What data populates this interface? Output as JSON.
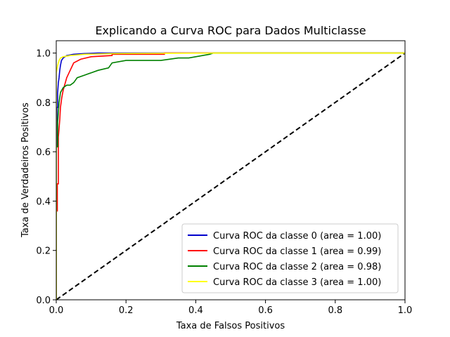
{
  "chart_data": {
    "type": "line",
    "title": "Explicando a Curva ROC para Dados Multiclasse",
    "xlabel": "Taxa de Falsos Positivos",
    "ylabel": "Taxa de Verdadeiros Positivos",
    "xlim": [
      0.0,
      1.0
    ],
    "ylim": [
      0.0,
      1.05
    ],
    "xticks": [
      "0.0",
      "0.2",
      "0.4",
      "0.6",
      "0.8",
      "1.0"
    ],
    "yticks": [
      "0.0",
      "0.2",
      "0.4",
      "0.6",
      "0.8",
      "1.0"
    ],
    "grid": false,
    "legend_position": "lower-right",
    "series": [
      {
        "name": "Curva ROC da classe 0 (area = 1.00)",
        "color": "#0000cc",
        "x": [
          0.0,
          0.0,
          0.002,
          0.002,
          0.004,
          0.004,
          0.006,
          0.008,
          0.01,
          0.012,
          0.015,
          0.02,
          0.03,
          0.05,
          0.08,
          0.12,
          1.0
        ],
        "y": [
          0.0,
          0.62,
          0.62,
          0.78,
          0.78,
          0.84,
          0.88,
          0.9,
          0.93,
          0.95,
          0.97,
          0.98,
          0.99,
          0.995,
          0.998,
          1.0,
          1.0
        ]
      },
      {
        "name": "Curva ROC da classe 1 (area = 0.99)",
        "color": "#ff0000",
        "x": [
          0.0,
          0.0,
          0.003,
          0.003,
          0.006,
          0.006,
          0.01,
          0.012,
          0.016,
          0.02,
          0.03,
          0.04,
          0.05,
          0.07,
          0.1,
          0.16,
          0.16,
          0.31,
          0.31,
          1.0
        ],
        "y": [
          0.0,
          0.36,
          0.36,
          0.47,
          0.47,
          0.66,
          0.73,
          0.78,
          0.82,
          0.85,
          0.9,
          0.93,
          0.96,
          0.975,
          0.985,
          0.99,
          0.995,
          0.995,
          1.0,
          1.0
        ]
      },
      {
        "name": "Curva ROC da classe 2 (area = 0.98)",
        "color": "#008000",
        "x": [
          0.0,
          0.0,
          0.004,
          0.004,
          0.008,
          0.012,
          0.02,
          0.03,
          0.04,
          0.05,
          0.06,
          0.08,
          0.1,
          0.12,
          0.15,
          0.16,
          0.2,
          0.3,
          0.35,
          0.38,
          0.42,
          0.44,
          0.45,
          1.0
        ],
        "y": [
          0.0,
          0.62,
          0.62,
          0.72,
          0.8,
          0.84,
          0.86,
          0.87,
          0.87,
          0.88,
          0.9,
          0.91,
          0.92,
          0.93,
          0.94,
          0.96,
          0.97,
          0.97,
          0.98,
          0.98,
          0.99,
          0.995,
          1.0,
          1.0
        ]
      },
      {
        "name": "Curva ROC da classe 3 (area = 1.00)",
        "color": "#ffff00",
        "x": [
          0.0,
          0.0,
          0.004,
          0.008,
          0.012,
          0.02,
          0.04,
          0.08,
          0.16,
          0.3,
          0.46,
          1.0
        ],
        "y": [
          0.0,
          0.92,
          0.95,
          0.97,
          0.98,
          0.985,
          0.99,
          0.995,
          0.998,
          0.999,
          1.0,
          1.0
        ]
      }
    ],
    "reference_line": {
      "style": "dashed",
      "color": "#000000",
      "x": [
        0.0,
        1.0
      ],
      "y": [
        0.0,
        1.0
      ]
    }
  }
}
